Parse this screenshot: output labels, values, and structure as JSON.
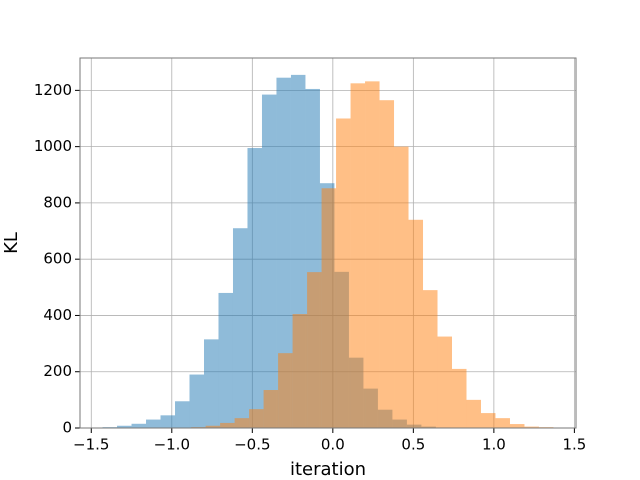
{
  "chart_data": {
    "type": "histogram",
    "xlabel": "iteration",
    "ylabel": "KL",
    "series": [
      {
        "color": "#1f77b4",
        "opacity": 0.5,
        "bins": [
          -1.43,
          -1.34,
          -1.25,
          -1.16,
          -1.07,
          -0.98,
          -0.89,
          -0.8,
          -0.71,
          -0.62,
          -0.53,
          -0.44,
          -0.35,
          -0.26,
          -0.17,
          -0.08,
          0.01,
          0.1,
          0.19,
          0.28,
          0.37,
          0.46,
          0.55,
          0.64,
          0.73,
          0.82,
          0.91,
          1.0
        ],
        "values": [
          3,
          8,
          15,
          30,
          45,
          95,
          190,
          315,
          480,
          710,
          995,
          1185,
          1245,
          1255,
          1205,
          870,
          555,
          250,
          140,
          65,
          30,
          12,
          5,
          2,
          1,
          0,
          1
        ]
      },
      {
        "color": "#ff7f0e",
        "opacity": 0.5,
        "bins": [
          -0.88,
          -0.79,
          -0.7,
          -0.61,
          -0.52,
          -0.43,
          -0.34,
          -0.25,
          -0.16,
          -0.07,
          0.02,
          0.11,
          0.2,
          0.29,
          0.38,
          0.47,
          0.56,
          0.65,
          0.74,
          0.83,
          0.92,
          1.01,
          1.1,
          1.19,
          1.28,
          1.37
        ],
        "values": [
          3,
          8,
          18,
          35,
          67,
          135,
          266,
          405,
          554,
          852,
          1100,
          1225,
          1232,
          1165,
          1000,
          740,
          490,
          325,
          210,
          100,
          53,
          35,
          14,
          5,
          3
        ]
      }
    ],
    "xlim": [
      -1.57,
      1.51
    ],
    "xticks": [
      {
        "value": -1.5,
        "label": "−1.5"
      },
      {
        "value": -1.0,
        "label": "−1.0"
      },
      {
        "value": -0.5,
        "label": "−0.5"
      },
      {
        "value": 0,
        "label": "0.0"
      },
      0.5,
      {
        "value": 1.0,
        "label": "1.0"
      },
      1.5
    ],
    "ylim": [
      0,
      1315
    ],
    "yticks": [
      0,
      200,
      400,
      600,
      800,
      1000,
      1200
    ],
    "grid": true
  }
}
